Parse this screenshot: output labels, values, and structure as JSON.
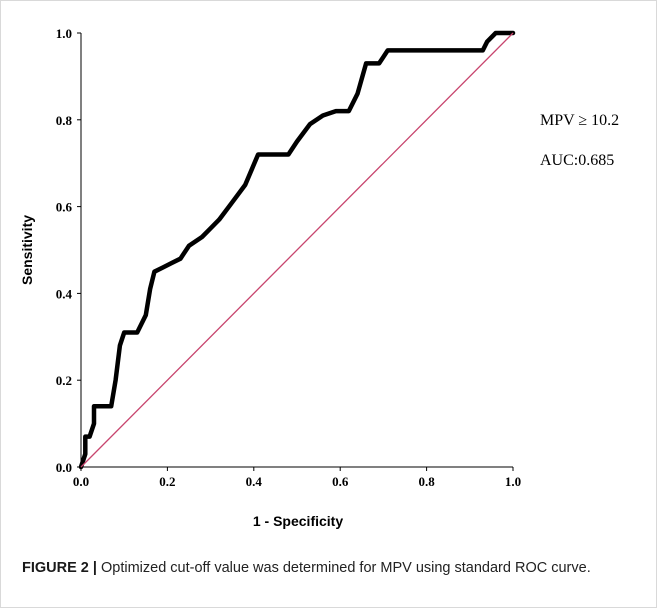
{
  "caption": {
    "label": "FIGURE 2 |",
    "text": " Optimized cut-off value was determined for MPV using standard ROC curve."
  },
  "colors": {
    "curve": "#000000",
    "reference_line": "#c8456e",
    "axes": "#000000"
  },
  "chart_data": {
    "type": "line",
    "title": "",
    "xlabel": "1 - Specificity",
    "ylabel": "Sensitivity",
    "xlim": [
      0,
      1
    ],
    "ylim": [
      0,
      1
    ],
    "x_ticks": [
      "0.0",
      "0.2",
      "0.4",
      "0.6",
      "0.8",
      "1.0"
    ],
    "y_ticks": [
      "0.0",
      "0.2",
      "0.4",
      "0.6",
      "0.8",
      "1.0"
    ],
    "grid": false,
    "annotations": [
      "MPV ≥ 10.2",
      "AUC:0.685"
    ],
    "series": [
      {
        "role": "roc_curve",
        "x": [
          0,
          0.01,
          0.01,
          0.02,
          0.03,
          0.03,
          0.05,
          0.07,
          0.08,
          0.09,
          0.1,
          0.12,
          0.13,
          0.15,
          0.16,
          0.17,
          0.19,
          0.21,
          0.23,
          0.25,
          0.28,
          0.3,
          0.32,
          0.35,
          0.38,
          0.41,
          0.43,
          0.48,
          0.5,
          0.53,
          0.56,
          0.59,
          0.62,
          0.64,
          0.66,
          0.69,
          0.71,
          0.73,
          0.93,
          0.94,
          0.96,
          1.0
        ],
        "y": [
          0,
          0.03,
          0.07,
          0.07,
          0.1,
          0.14,
          0.14,
          0.14,
          0.2,
          0.28,
          0.31,
          0.31,
          0.31,
          0.35,
          0.41,
          0.45,
          0.46,
          0.47,
          0.48,
          0.51,
          0.53,
          0.55,
          0.57,
          0.61,
          0.65,
          0.72,
          0.72,
          0.72,
          0.75,
          0.79,
          0.81,
          0.82,
          0.82,
          0.86,
          0.93,
          0.93,
          0.96,
          0.96,
          0.96,
          0.98,
          1.0,
          1.0
        ]
      },
      {
        "role": "reference_line",
        "x": [
          0,
          1
        ],
        "y": [
          0,
          1
        ]
      }
    ]
  }
}
